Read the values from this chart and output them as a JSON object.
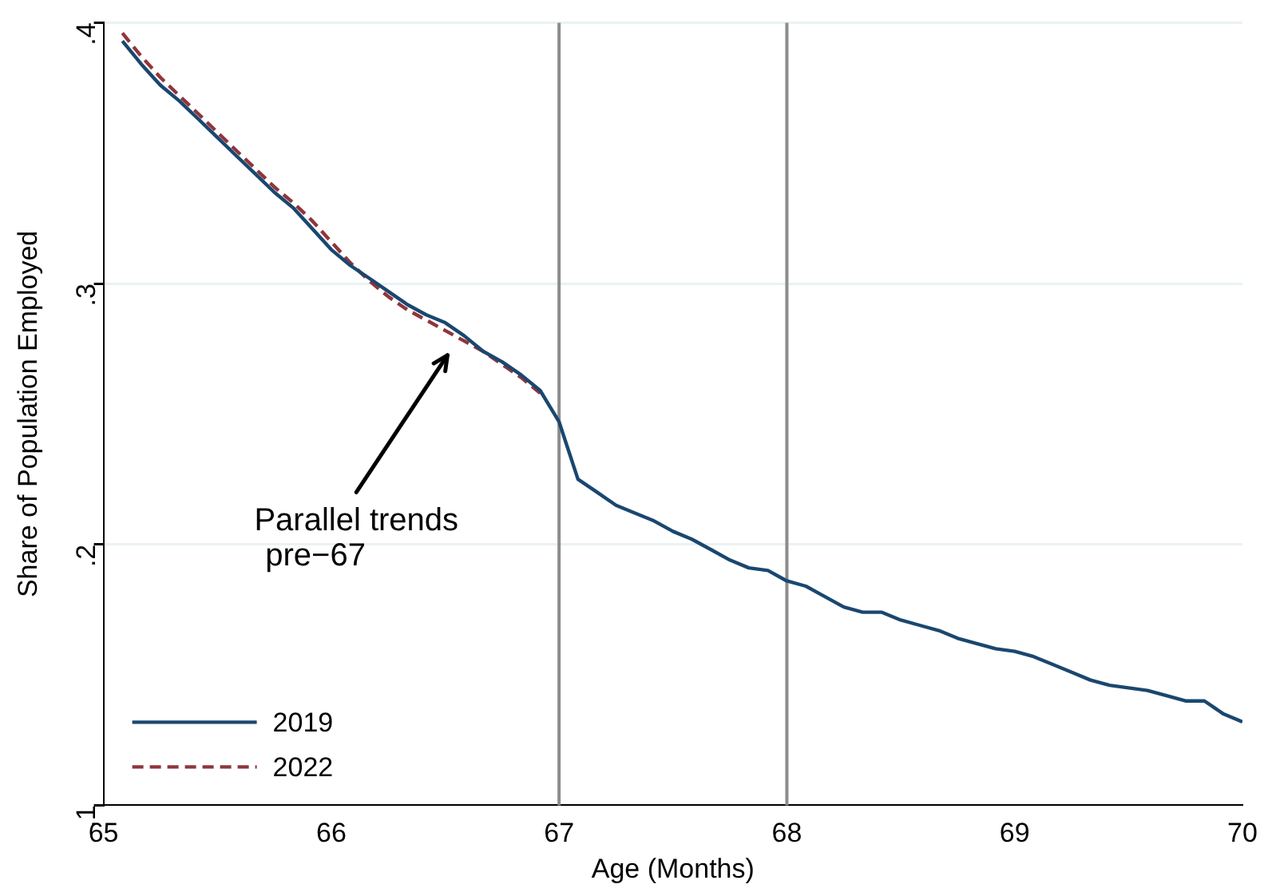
{
  "chart_data": {
    "type": "line",
    "xlabel": "Age (Months)",
    "ylabel": "Share of Population Employed",
    "xlim": [
      65,
      70
    ],
    "xticks": [
      65,
      66,
      67,
      68,
      69,
      70
    ],
    "ylim": [
      0.1,
      0.4
    ],
    "yticks": [
      {
        "value": 0.1,
        "label": ".1"
      },
      {
        "value": 0.2,
        "label": ".2"
      },
      {
        "value": 0.3,
        "label": ".3"
      },
      {
        "value": 0.4,
        "label": ".4"
      }
    ],
    "grid": "y",
    "legend": "bottom left",
    "marker": "none",
    "ref_lines": [
      {
        "axis": "x",
        "value": 67,
        "color": "#8c8c8c"
      },
      {
        "axis": "x",
        "value": 68,
        "color": "#8c8c8c"
      }
    ],
    "annotations": [
      "Parallel trends\npre−67"
    ],
    "series": [
      {
        "name": "2019",
        "color": "#1a476f",
        "line_style": "solid",
        "x": [
          65.083,
          65.167,
          65.25,
          65.333,
          65.417,
          65.5,
          65.583,
          65.667,
          65.75,
          65.833,
          65.917,
          66,
          66.083,
          66.167,
          66.25,
          66.333,
          66.417,
          66.5,
          66.583,
          66.667,
          66.75,
          66.833,
          66.917,
          67,
          67.083,
          67.167,
          67.25,
          67.333,
          67.417,
          67.5,
          67.583,
          67.667,
          67.75,
          67.833,
          67.917,
          68,
          68.083,
          68.167,
          68.25,
          68.333,
          68.417,
          68.5,
          68.583,
          68.667,
          68.75,
          68.833,
          68.917,
          69,
          69.083,
          69.167,
          69.25,
          69.333,
          69.417,
          69.5,
          69.583,
          69.667,
          69.75,
          69.833,
          69.917,
          70
        ],
        "values": [
          0.393,
          0.384,
          0.376,
          0.37,
          0.363,
          0.356,
          0.349,
          0.342,
          0.335,
          0.329,
          0.321,
          0.313,
          0.307,
          0.302,
          0.297,
          0.292,
          0.288,
          0.285,
          0.28,
          0.274,
          0.27,
          0.265,
          0.259,
          0.247,
          0.225,
          0.22,
          0.215,
          0.212,
          0.209,
          0.205,
          0.202,
          0.198,
          0.194,
          0.191,
          0.19,
          0.186,
          0.184,
          0.18,
          0.176,
          0.174,
          0.174,
          0.171,
          0.169,
          0.167,
          0.164,
          0.162,
          0.16,
          0.159,
          0.157,
          0.154,
          0.151,
          0.148,
          0.146,
          0.145,
          0.144,
          0.142,
          0.14,
          0.14,
          0.135,
          0.132
        ]
      },
      {
        "name": "2022",
        "color": "#90353b",
        "line_style": "dashed",
        "x": [
          65.083,
          65.167,
          65.25,
          65.333,
          65.417,
          65.5,
          65.583,
          65.667,
          65.75,
          65.833,
          65.917,
          66,
          66.083,
          66.167,
          66.25,
          66.333,
          66.417,
          66.5,
          66.583,
          66.667,
          66.75,
          66.833,
          66.917
        ],
        "values": [
          0.396,
          0.387,
          0.379,
          0.372,
          0.365,
          0.358,
          0.351,
          0.344,
          0.337,
          0.331,
          0.324,
          0.316,
          0.308,
          0.301,
          0.295,
          0.29,
          0.286,
          0.282,
          0.278,
          0.274,
          0.269,
          0.264,
          0.258
        ]
      }
    ]
  }
}
